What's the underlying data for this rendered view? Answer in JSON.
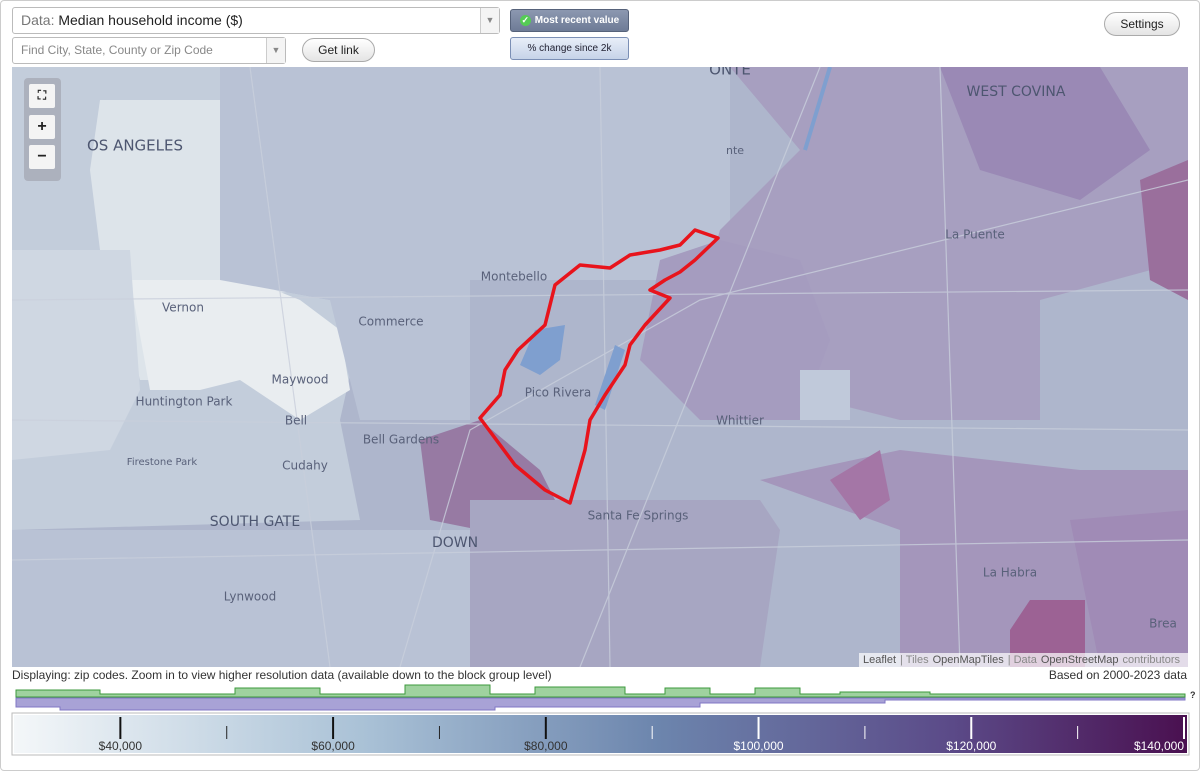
{
  "data_select": {
    "prefix": "Data:",
    "value": "Median household income ($)"
  },
  "search": {
    "placeholder": "Find City, State, County or Zip Code"
  },
  "buttons": {
    "get_link": "Get link",
    "most_recent": "Most recent value",
    "percent_change": "% change since 2k",
    "settings": "Settings"
  },
  "zoom": {
    "zoom_in": "+",
    "zoom_out": "−"
  },
  "map": {
    "labels": [
      "ONTE",
      "WEST COVINA",
      "OS ANGELES",
      "nte",
      "La Puente",
      "Montebello",
      "Vernon",
      "Commerce",
      "Pico Rivera",
      "Maywood",
      "Huntington Park",
      "Whittier",
      "Bell",
      "Bell Gardens",
      "Cudahy",
      "Firestone Park",
      "Santa Fe Springs",
      "SOUTH GATE",
      "DOWN",
      "Lynwood",
      "La Habra",
      "Brea"
    ],
    "attribution": [
      "Leaflet",
      "| Tiles",
      "OpenMapTiles",
      "| Data",
      "OpenStreetMap",
      "contributors"
    ]
  },
  "status": {
    "displaying": "Displaying: zip codes. Zoom in to view higher resolution data (available down to the block group level)",
    "based_on": "Based on 2000-2023 data"
  },
  "histogram": {
    "help": "?"
  },
  "legend": {
    "range": [
      30000,
      140000
    ],
    "ticks": [
      {
        "value": 40000,
        "label": "$40,000"
      },
      {
        "value": 60000,
        "label": "$60,000"
      },
      {
        "value": 80000,
        "label": "$80,000"
      },
      {
        "value": 100000,
        "label": "$100,000"
      },
      {
        "value": 120000,
        "label": "$120,000"
      },
      {
        "value": 140000,
        "label": "$140,000"
      }
    ]
  }
}
